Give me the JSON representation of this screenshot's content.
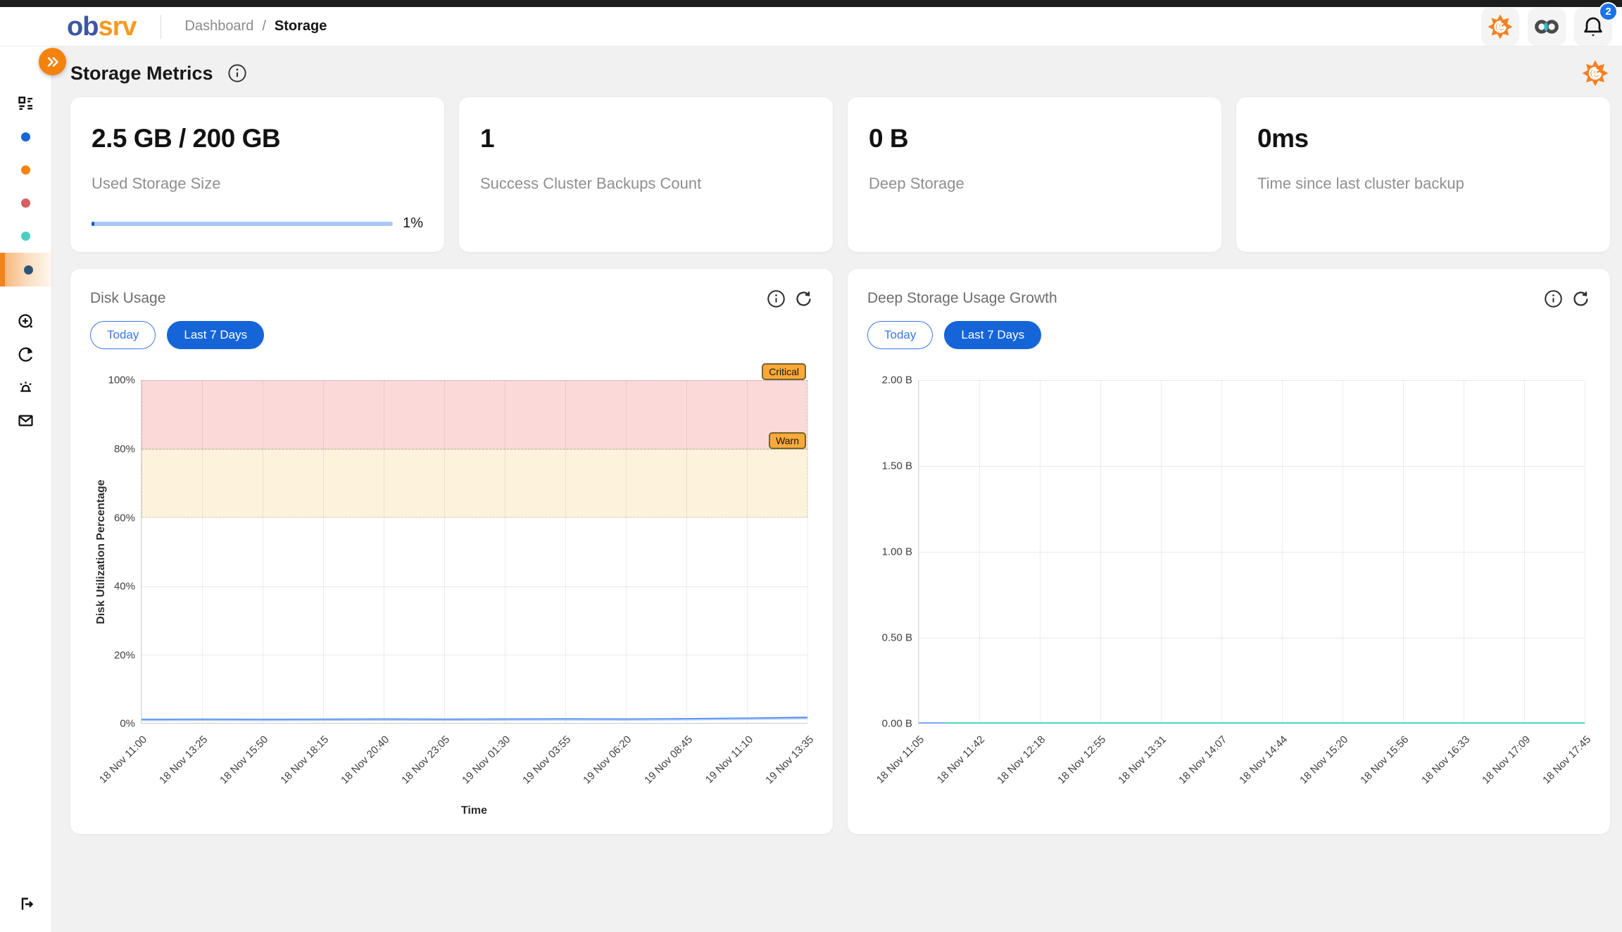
{
  "header": {
    "logo": {
      "text_blue": "ob",
      "text_orange": "srv"
    },
    "breadcrumb": {
      "parent": "Dashboard",
      "separator": "/",
      "current": "Storage"
    },
    "notification_count": "2",
    "icons": [
      "grafana-icon",
      "infinity-icon",
      "bell-icon"
    ]
  },
  "sidebar": {
    "dot_colors": [
      "#1667d3",
      "#f5820d",
      "#d95f5f",
      "#4dd0c4"
    ],
    "selected_dot_color": "#2f5575",
    "selected_accent": "#f0831e",
    "icons": [
      "expand-icon",
      "dashboard-grid-icon",
      "new-circle-plus-icon",
      "pie-chart-icon",
      "alerts-icon",
      "mail-icon",
      "logout-icon"
    ]
  },
  "page": {
    "title": "Storage Metrics"
  },
  "cards": [
    {
      "value": "2.5 GB / 200 GB",
      "label": "Used Storage Size",
      "progress_label": "1%",
      "progress_percent": 1
    },
    {
      "value": "1",
      "label": "Success Cluster Backups Count"
    },
    {
      "value": "0 B",
      "label": "Deep Storage"
    },
    {
      "value": "0ms",
      "label": "Time since last cluster backup"
    }
  ],
  "chart_data": [
    {
      "type": "line",
      "title": "Disk Usage",
      "time_range_buttons": [
        {
          "label": "Today",
          "active": false
        },
        {
          "label": "Last 7 Days",
          "active": true
        }
      ],
      "xlabel": "Time",
      "ylabel": "Disk Utilization Percentage",
      "ylim": [
        0,
        100
      ],
      "y_tick_labels": [
        "0%",
        "20%",
        "40%",
        "60%",
        "80%",
        "100%"
      ],
      "x": [
        "18 Nov 11:00",
        "18 Nov 13:25",
        "18 Nov 15:50",
        "18 Nov 18:15",
        "18 Nov 20:40",
        "18 Nov 23:05",
        "19 Nov 01:30",
        "19 Nov 03:55",
        "19 Nov 06:20",
        "19 Nov 08:45",
        "19 Nov 11:10",
        "19 Nov 13:35"
      ],
      "grid": true,
      "legend": "none",
      "bands": [
        {
          "label": "Critical",
          "from": 80,
          "to": 100,
          "color": "#fbd9d9",
          "badge_color": "#f9a93a"
        },
        {
          "label": "Warn",
          "from": 60,
          "to": 80,
          "color": "#fdf3dc",
          "badge_color": "#f9a93a"
        }
      ],
      "series": [
        {
          "name": "disk-utilization",
          "color": "#3d7ff0",
          "values": [
            1.0,
            1.05,
            1.0,
            1.05,
            1.1,
            1.05,
            1.1,
            1.15,
            1.1,
            1.2,
            1.35,
            1.6
          ]
        },
        {
          "name": "disk-utilization-secondary",
          "color": "#a9c6f7",
          "values": [
            0.75,
            0.8,
            0.75,
            0.8,
            0.85,
            0.8,
            0.85,
            0.9,
            0.85,
            0.95,
            1.1,
            1.3
          ]
        }
      ]
    },
    {
      "type": "line",
      "title": "Deep Storage Usage Growth",
      "time_range_buttons": [
        {
          "label": "Today",
          "active": false
        },
        {
          "label": "Last 7 Days",
          "active": true
        }
      ],
      "xlabel": "",
      "ylabel": "",
      "ylim": [
        0,
        2
      ],
      "y_tick_labels": [
        "0.00 B",
        "0.50 B",
        "1.00 B",
        "1.50 B",
        "2.00 B"
      ],
      "x": [
        "18 Nov 11:05",
        "18 Nov 11:42",
        "18 Nov 12:18",
        "18 Nov 12:55",
        "18 Nov 13:31",
        "18 Nov 14:07",
        "18 Nov 14:44",
        "18 Nov 15:20",
        "18 Nov 15:56",
        "18 Nov 16:33",
        "18 Nov 17:09",
        "18 Nov 17:45"
      ],
      "grid": true,
      "legend": "none",
      "series": [
        {
          "name": "deep-storage-usage",
          "color": "#49d7c6",
          "values": [
            0,
            0,
            0,
            0,
            0,
            0,
            0,
            0,
            0,
            0,
            0,
            0
          ]
        },
        {
          "name": "deep-storage-usage-start",
          "color": "#7aa7f7",
          "values": [
            0,
            0
          ],
          "end_fraction": 0.04
        }
      ]
    }
  ],
  "colors": {
    "accent_blue": "#1565d8",
    "accent_orange": "#f5820d",
    "grafana_orange": "#f48120",
    "progress_track": "#a8c7f8",
    "progress_fill": "#1656c8",
    "notification_badge": "#1a73e8"
  }
}
